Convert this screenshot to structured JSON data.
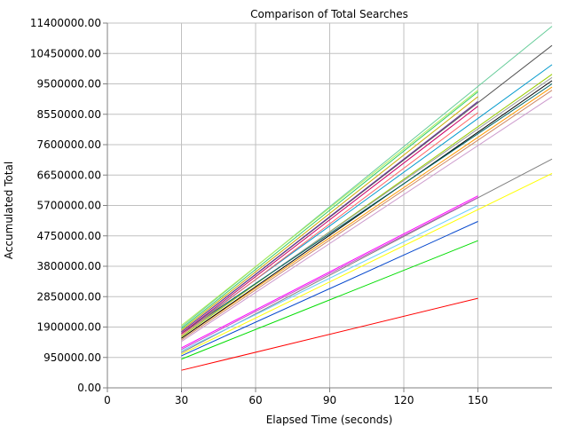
{
  "chart_data": {
    "type": "line",
    "title": "Comparison of Total Searches",
    "xlabel": "Elapsed Time (seconds)",
    "ylabel": "Accumulated Total",
    "xlim": [
      0,
      180
    ],
    "ylim": [
      0,
      11400000
    ],
    "x_ticks": [
      0,
      30,
      60,
      90,
      120,
      150
    ],
    "x_tick_labels": [
      "0",
      "30",
      "60",
      "90",
      "120",
      "150"
    ],
    "y_ticks": [
      0,
      950000,
      1900000,
      2850000,
      3800000,
      4750000,
      5700000,
      6650000,
      7600000,
      8550000,
      9500000,
      10450000,
      11400000
    ],
    "y_tick_labels": [
      "0.00",
      "950000.00",
      "1900000.00",
      "2850000.00",
      "3800000.00",
      "4750000.00",
      "5700000.00",
      "6650000.00",
      "7600000.00",
      "8550000.00",
      "9500000.00",
      "10450000.00",
      "11400000.00"
    ],
    "grid": true,
    "series": [
      {
        "color": "#ff0000",
        "x": [
          30,
          150
        ],
        "y": [
          550000,
          2800000
        ]
      },
      {
        "color": "#00dd00",
        "x": [
          30,
          150
        ],
        "y": [
          900000,
          4600000
        ]
      },
      {
        "color": "#0044cc",
        "x": [
          30,
          150
        ],
        "y": [
          1000000,
          5200000
        ]
      },
      {
        "color": "#ffff00",
        "x": [
          30,
          180
        ],
        "y": [
          1050000,
          6700000
        ]
      },
      {
        "color": "#808080",
        "x": [
          30,
          180
        ],
        "y": [
          1100000,
          7150000
        ]
      },
      {
        "color": "#66ccff",
        "x": [
          30,
          150
        ],
        "y": [
          1150000,
          5700000
        ]
      },
      {
        "color": "#cc44cc",
        "x": [
          30,
          150
        ],
        "y": [
          1200000,
          5950000
        ]
      },
      {
        "color": "#ff00ff",
        "x": [
          30,
          150
        ],
        "y": [
          1250000,
          6000000
        ]
      },
      {
        "color": "#cc99cc",
        "x": [
          30,
          180
        ],
        "y": [
          1450000,
          9100000
        ]
      },
      {
        "color": "#cc8866",
        "x": [
          30,
          180
        ],
        "y": [
          1500000,
          9300000
        ]
      },
      {
        "color": "#ff9900",
        "x": [
          30,
          180
        ],
        "y": [
          1550000,
          9400000
        ]
      },
      {
        "color": "#000000",
        "x": [
          30,
          180
        ],
        "y": [
          1550000,
          9600000
        ]
      },
      {
        "color": "#99cc00",
        "x": [
          30,
          180
        ],
        "y": [
          1600000,
          9800000
        ]
      },
      {
        "color": "#999999",
        "x": [
          30,
          180
        ],
        "y": [
          1650000,
          9700000
        ]
      },
      {
        "color": "#006666",
        "x": [
          30,
          180
        ],
        "y": [
          1700000,
          9500000
        ]
      },
      {
        "color": "#0099cc",
        "x": [
          30,
          180
        ],
        "y": [
          1700000,
          10100000
        ]
      },
      {
        "color": "#555555",
        "x": [
          30,
          180
        ],
        "y": [
          1750000,
          10700000
        ]
      },
      {
        "color": "#ff6666",
        "x": [
          30,
          150
        ],
        "y": [
          1650000,
          8600000
        ]
      },
      {
        "color": "#cc0066",
        "x": [
          30,
          150
        ],
        "y": [
          1700000,
          8800000
        ]
      },
      {
        "color": "#663399",
        "x": [
          30,
          150
        ],
        "y": [
          1750000,
          8950000
        ]
      },
      {
        "color": "#ccaa00",
        "x": [
          30,
          150
        ],
        "y": [
          1800000,
          9100000
        ]
      },
      {
        "color": "#33cc66",
        "x": [
          30,
          150
        ],
        "y": [
          1850000,
          9250000
        ]
      },
      {
        "color": "#66cc99",
        "x": [
          30,
          180
        ],
        "y": [
          1900000,
          11300000
        ]
      },
      {
        "color": "#aaee55",
        "x": [
          30,
          150
        ],
        "y": [
          1950000,
          9300000
        ]
      }
    ]
  }
}
